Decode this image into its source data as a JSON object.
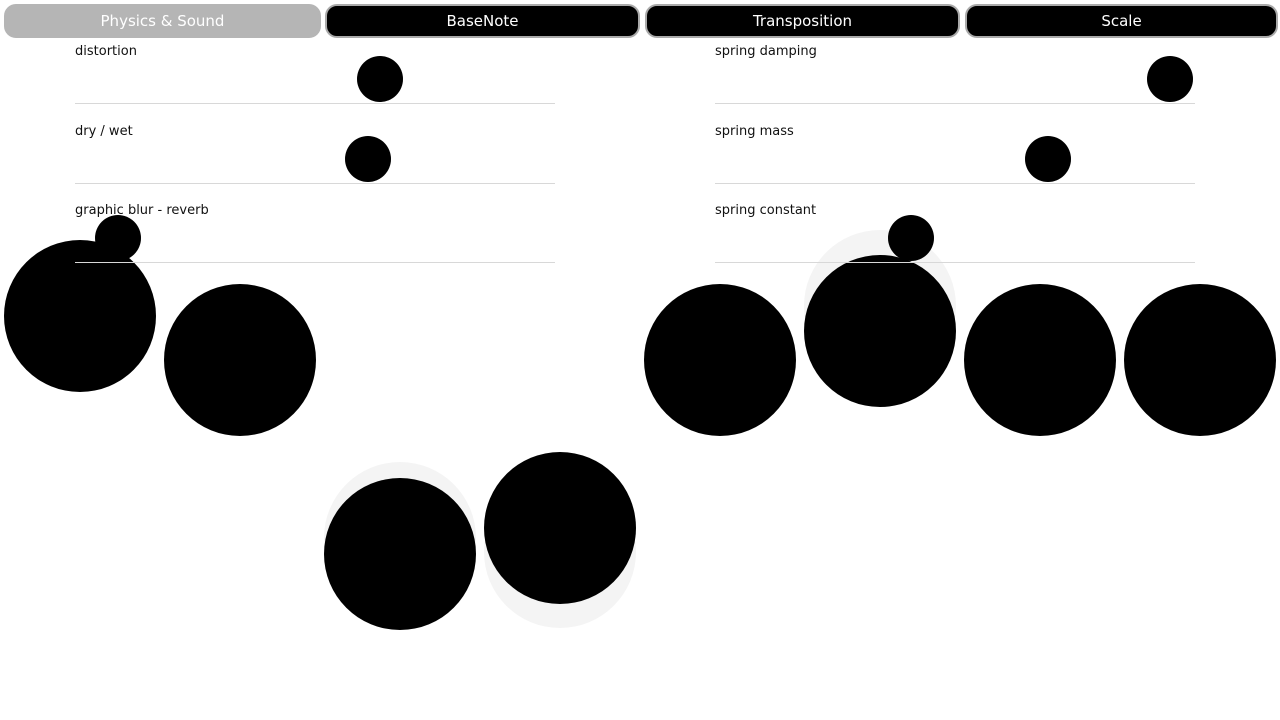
{
  "tabs": [
    {
      "label": "Physics & Sound",
      "active": true
    },
    {
      "label": "BaseNote",
      "active": false
    },
    {
      "label": "Transposition",
      "active": false
    },
    {
      "label": "Scale",
      "active": false
    }
  ],
  "sliders_left": [
    {
      "label": "distortion",
      "value": 0.635
    },
    {
      "label": "dry / wet",
      "value": 0.61
    },
    {
      "label": "graphic blur - reverb",
      "value": 0.09
    }
  ],
  "sliders_right": [
    {
      "label": "spring damping",
      "value": 0.948
    },
    {
      "label": "spring mass",
      "value": 0.694
    },
    {
      "label": "spring constant",
      "value": 0.408
    }
  ],
  "colors": {
    "ball": "#000000",
    "tab_active": "#b5b5b5",
    "tab_inactive": "#000000",
    "track": "#d8d8d8"
  }
}
